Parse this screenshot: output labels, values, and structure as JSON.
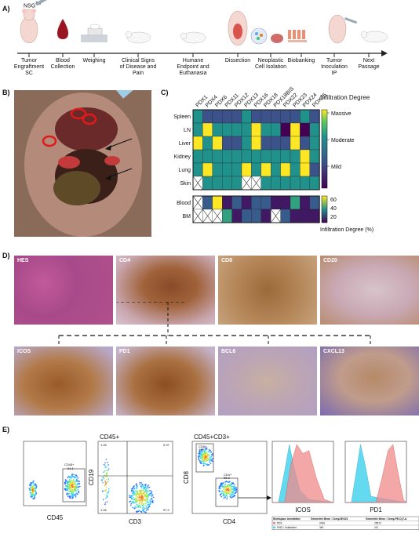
{
  "panel_letters": {
    "a": "A)",
    "b": "B)",
    "c": "C)",
    "d": "D)",
    "e": "E)"
  },
  "timeline": {
    "nsg_label": "NSG",
    "nsg_tm": "TM",
    "steps": [
      {
        "line1": "Tumor",
        "line2": "Engraftment",
        "line3": "SC"
      },
      {
        "line1": "Blood",
        "line2": "Collection",
        "line3": ""
      },
      {
        "line1": "Weighing",
        "line2": "",
        "line3": ""
      },
      {
        "line1": "Clinical Signs",
        "line2": "of Disease and",
        "line3": "Pain"
      },
      {
        "line1": "Humane",
        "line2": "Endpoint and",
        "line3": "Euthanasia"
      },
      {
        "line1": "Dissection",
        "line2": "",
        "line3": ""
      },
      {
        "line1": "Neoplastic",
        "line2": "Cell Isolation",
        "line3": ""
      },
      {
        "line1": "Biobanking",
        "line2": "",
        "line3": ""
      },
      {
        "line1": "Tumor",
        "line2": "Inoculation",
        "line3": "IP"
      },
      {
        "line1": "Next",
        "line2": "Passage",
        "line3": ""
      }
    ]
  },
  "heatmap": {
    "columns": [
      "PDX1",
      "PDX4",
      "PDX6",
      "PDX11",
      "PDX12",
      "PDX13",
      "PDX16",
      "PDX18",
      "PDX18BIS",
      "PDX22",
      "PDX23",
      "PDX24",
      "PDX25"
    ],
    "rows_top": [
      "Spleen",
      "LN",
      "Liver",
      "Kidney",
      "Lung",
      "Skin"
    ],
    "rows_bottom": [
      "Blood",
      "BM"
    ],
    "legend_title": "Infiltration Degree",
    "legend_levels": [
      "Massive",
      "Moderate",
      "Mild"
    ],
    "legend2_ticks": [
      "60",
      "40",
      "20"
    ],
    "legend2_title": "Infiltration Degree (%)",
    "colors": {
      "massive": "#fde725",
      "moderate": "#21918c",
      "mild": "#3b528b",
      "low": "#440154",
      "light": "#5ec962"
    }
  },
  "chart_data": [
    {
      "type": "heatmap",
      "title": "",
      "x": [
        "PDX1",
        "PDX4",
        "PDX6",
        "PDX11",
        "PDX12",
        "PDX13",
        "PDX16",
        "PDX18",
        "PDX18BIS",
        "PDX22",
        "PDX23",
        "PDX24",
        "PDX25"
      ],
      "y": [
        "Spleen",
        "LN",
        "Liver",
        "Kidney",
        "Lung",
        "Skin"
      ],
      "scale": [
        "Mild",
        "Moderate",
        "Massive"
      ],
      "values": [
        [
          2,
          1,
          1,
          1,
          1,
          2,
          1,
          1,
          1,
          1,
          1,
          2,
          1
        ],
        [
          2,
          3,
          2,
          2,
          2,
          2,
          3,
          2,
          2,
          0,
          3,
          0,
          2
        ],
        [
          3,
          2,
          3,
          1,
          1,
          2,
          3,
          1,
          1,
          1,
          3,
          1,
          2
        ],
        [
          2,
          2,
          2,
          2,
          2,
          2,
          2,
          2,
          2,
          2,
          2,
          3,
          2
        ],
        [
          2,
          3,
          2,
          2,
          2,
          3,
          2,
          3,
          2,
          3,
          2,
          3,
          1
        ],
        [
          null,
          2,
          2,
          2,
          2,
          null,
          null,
          2,
          2,
          2,
          2,
          2,
          2
        ]
      ]
    },
    {
      "type": "heatmap",
      "title": "",
      "x": [
        "PDX1",
        "PDX4",
        "PDX6",
        "PDX11",
        "PDX12",
        "PDX13",
        "PDX16",
        "PDX18",
        "PDX18BIS",
        "PDX22",
        "PDX23",
        "PDX24",
        "PDX25"
      ],
      "y": [
        "Blood",
        "BM"
      ],
      "unit": "Infiltration Degree (%)",
      "range": [
        0,
        70
      ],
      "values": [
        [
          null,
          20,
          70,
          5,
          20,
          5,
          20,
          20,
          5,
          5,
          40,
          5,
          20
        ],
        [
          null,
          null,
          null,
          40,
          5,
          20,
          20,
          5,
          null,
          20,
          5,
          5,
          5
        ]
      ]
    }
  ],
  "photo_b": {
    "arrow_count": 2
  },
  "micro_top": [
    "HES",
    "CD4",
    "CD8",
    "CD20"
  ],
  "micro_bottom": [
    "ICOS",
    "PD1",
    "BCL6",
    "CXCL13"
  ],
  "flow": {
    "p1": {
      "xlabel": "CD45",
      "gate": "CD45+",
      "gate_val": "94.1"
    },
    "p2": {
      "title": "CD45+",
      "xlabel": "CD3",
      "ylabel": "CD19",
      "q_tl": "1.45",
      "q_tr": "0.37",
      "q_bl": "1.26",
      "q_br": "97.2"
    },
    "p3": {
      "title": "CD45+CD3+",
      "xlabel": "CD4",
      "ylabel": "CD8",
      "g1": "CD8+",
      "g1v": "42.7",
      "g2": "CD4+",
      "g2v": "55.8"
    },
    "h1": {
      "xlabel": "ICOS"
    },
    "h2": {
      "xlabel": "PD1"
    },
    "table": {
      "headers": [
        "Workspace Annotation",
        "Geometric Mean : Comp-BV421",
        "Geometric Mean : Comp-PE-Cy7-A"
      ],
      "rows": [
        [
          "PDX",
          "2430",
          "25972"
        ],
        [
          "FMO / Unlabelled",
          "360",
          "412"
        ]
      ]
    }
  }
}
